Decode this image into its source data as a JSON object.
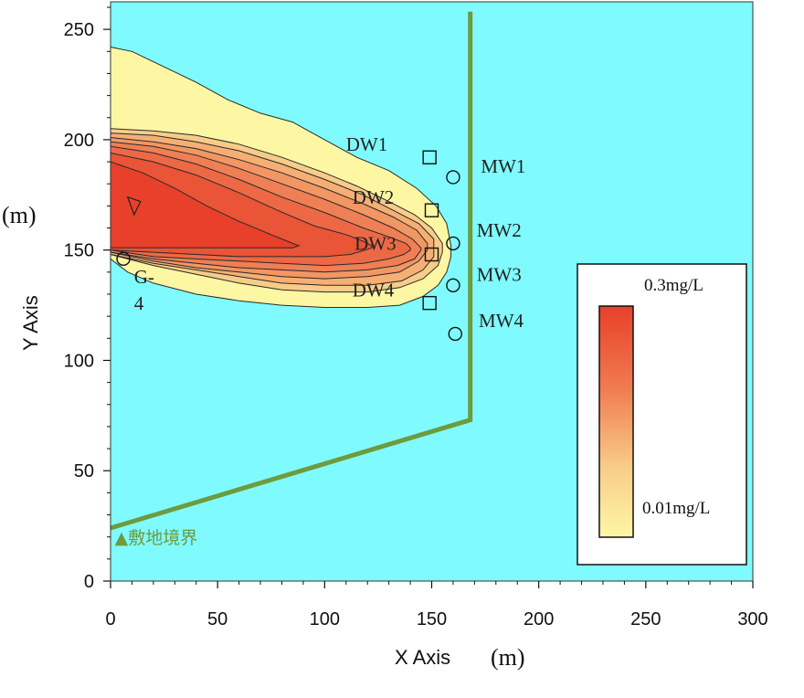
{
  "colors": {
    "background": "#7ffbff",
    "boundary": "#6f9a3e",
    "high": "#e8402a",
    "low": "#fdf7a4"
  },
  "chart_data": {
    "type": "contour",
    "xlabel": "X Axis",
    "ylabel": "Y Axis",
    "x_unit": "(m)",
    "y_unit": "(m)",
    "xlim": [
      0,
      300
    ],
    "ylim": [
      0,
      260
    ],
    "xticks": [
      0,
      50,
      100,
      150,
      200,
      250,
      300
    ],
    "yticks": [
      0,
      50,
      100,
      150,
      200,
      250
    ],
    "legend": {
      "placement": "bottom-right",
      "max_label": "0.3mg/L",
      "min_label": "0.01mg/L"
    },
    "levels": [
      {
        "upper": [
          [
            0,
            242
          ],
          [
            10,
            240
          ],
          [
            25,
            233
          ],
          [
            40,
            226
          ],
          [
            55,
            218
          ],
          [
            70,
            212
          ],
          [
            85,
            208
          ],
          [
            100,
            200
          ],
          [
            115,
            192
          ],
          [
            130,
            186
          ],
          [
            143,
            178
          ],
          [
            152,
            170
          ],
          [
            157,
            162
          ],
          [
            159,
            152
          ]
        ],
        "lower": [
          [
            0,
            146
          ],
          [
            8,
            140
          ],
          [
            20,
            135
          ],
          [
            40,
            130
          ],
          [
            60,
            127
          ],
          [
            80,
            125
          ],
          [
            100,
            124
          ],
          [
            120,
            124
          ],
          [
            135,
            125
          ],
          [
            146,
            129
          ],
          [
            153,
            134
          ],
          [
            157,
            140
          ],
          [
            159,
            147
          ]
        ]
      },
      {
        "upper": [
          [
            0,
            205
          ],
          [
            20,
            204
          ],
          [
            40,
            202
          ],
          [
            60,
            198
          ],
          [
            80,
            192
          ],
          [
            100,
            185
          ],
          [
            115,
            179
          ],
          [
            130,
            172
          ],
          [
            142,
            166
          ],
          [
            150,
            160
          ],
          [
            155,
            153
          ]
        ],
        "lower": [
          [
            0,
            148
          ],
          [
            20,
            143
          ],
          [
            40,
            139
          ],
          [
            60,
            135
          ],
          [
            80,
            132
          ],
          [
            100,
            131
          ],
          [
            120,
            131
          ],
          [
            135,
            133
          ],
          [
            146,
            137
          ],
          [
            153,
            143
          ],
          [
            155,
            149
          ]
        ]
      },
      {
        "upper": [
          [
            0,
            203
          ],
          [
            20,
            202
          ],
          [
            40,
            199
          ],
          [
            60,
            195
          ],
          [
            80,
            189
          ],
          [
            100,
            182
          ],
          [
            118,
            175
          ],
          [
            132,
            168
          ],
          [
            144,
            162
          ],
          [
            151,
            155
          ]
        ],
        "lower": [
          [
            0,
            148
          ],
          [
            20,
            144
          ],
          [
            40,
            141
          ],
          [
            60,
            138
          ],
          [
            80,
            135
          ],
          [
            100,
            134
          ],
          [
            120,
            134
          ],
          [
            136,
            136
          ],
          [
            146,
            141
          ],
          [
            151,
            147
          ]
        ]
      },
      {
        "upper": [
          [
            0,
            201
          ],
          [
            20,
            199
          ],
          [
            40,
            196
          ],
          [
            60,
            191
          ],
          [
            80,
            185
          ],
          [
            100,
            178
          ],
          [
            118,
            171
          ],
          [
            132,
            165
          ],
          [
            143,
            159
          ],
          [
            148,
            153
          ]
        ],
        "lower": [
          [
            0,
            149
          ],
          [
            20,
            145
          ],
          [
            40,
            142
          ],
          [
            60,
            140
          ],
          [
            80,
            138
          ],
          [
            100,
            137
          ],
          [
            120,
            138
          ],
          [
            135,
            140
          ],
          [
            144,
            145
          ],
          [
            148,
            150
          ]
        ]
      },
      {
        "upper": [
          [
            0,
            199
          ],
          [
            20,
            197
          ],
          [
            40,
            193
          ],
          [
            60,
            187
          ],
          [
            80,
            180
          ],
          [
            100,
            173
          ],
          [
            118,
            166
          ],
          [
            132,
            160
          ],
          [
            141,
            155
          ],
          [
            145,
            151
          ]
        ],
        "lower": [
          [
            0,
            149
          ],
          [
            20,
            146
          ],
          [
            40,
            144
          ],
          [
            60,
            142
          ],
          [
            80,
            141
          ],
          [
            100,
            140
          ],
          [
            120,
            141
          ],
          [
            134,
            143
          ],
          [
            142,
            146
          ],
          [
            145,
            150
          ]
        ]
      },
      {
        "upper": [
          [
            0,
            197
          ],
          [
            20,
            194
          ],
          [
            40,
            189
          ],
          [
            60,
            182
          ],
          [
            80,
            174
          ],
          [
            100,
            167
          ],
          [
            118,
            160
          ],
          [
            130,
            156
          ],
          [
            138,
            153
          ],
          [
            140,
            151
          ]
        ],
        "lower": [
          [
            0,
            150
          ],
          [
            20,
            147
          ],
          [
            40,
            146
          ],
          [
            60,
            145
          ],
          [
            80,
            144
          ],
          [
            100,
            143
          ],
          [
            118,
            144
          ],
          [
            130,
            146
          ],
          [
            137,
            148
          ],
          [
            140,
            150
          ]
        ]
      },
      {
        "upper": [
          [
            0,
            194
          ],
          [
            20,
            190
          ],
          [
            40,
            184
          ],
          [
            60,
            176
          ],
          [
            78,
            168
          ],
          [
            95,
            161
          ],
          [
            110,
            157
          ],
          [
            118,
            154
          ],
          [
            122,
            152
          ]
        ],
        "lower": [
          [
            0,
            150
          ],
          [
            20,
            149
          ],
          [
            40,
            148
          ],
          [
            60,
            147
          ],
          [
            80,
            147
          ],
          [
            100,
            147
          ],
          [
            112,
            148
          ],
          [
            119,
            150
          ],
          [
            122,
            151
          ]
        ]
      },
      {
        "upper": [
          [
            0,
            190
          ],
          [
            15,
            185
          ],
          [
            30,
            178
          ],
          [
            45,
            170
          ],
          [
            60,
            163
          ],
          [
            75,
            157
          ],
          [
            85,
            153
          ],
          [
            88,
            152
          ]
        ],
        "lower": [
          [
            0,
            151
          ],
          [
            20,
            151
          ],
          [
            40,
            151
          ],
          [
            60,
            151
          ],
          [
            75,
            151
          ],
          [
            85,
            151
          ],
          [
            88,
            152
          ]
        ]
      }
    ],
    "triangle_marker": [
      [
        8,
        174
      ],
      [
        14,
        172
      ],
      [
        11,
        166
      ]
    ],
    "boundary_line": [
      [
        0,
        24
      ],
      [
        168,
        73
      ],
      [
        168,
        258
      ]
    ],
    "boundary_label": "▲敷地境界",
    "boundary_label_pos": [
      2,
      17
    ],
    "wells": [
      {
        "id": "DW1",
        "shape": "square",
        "x": 149,
        "y": 192,
        "label": "DW1",
        "label_x": 110,
        "label_y": 195,
        "label_color": "#222"
      },
      {
        "id": "DW2",
        "shape": "square",
        "x": 150,
        "y": 168,
        "label": "DW2",
        "label_x": 113,
        "label_y": 171,
        "label_color": "#222"
      },
      {
        "id": "DW3",
        "shape": "square",
        "x": 150,
        "y": 148,
        "label": "DW3",
        "label_x": 114,
        "label_y": 150,
        "label_color": "#ffffff"
      },
      {
        "id": "DW4",
        "shape": "square",
        "x": 149,
        "y": 126,
        "label": "DW4",
        "label_x": 113,
        "label_y": 129,
        "label_color": "#222"
      },
      {
        "id": "MW1",
        "shape": "circle",
        "x": 160,
        "y": 183,
        "label": "MW1",
        "label_x": 173,
        "label_y": 185,
        "label_color": "#222"
      },
      {
        "id": "MW2",
        "shape": "circle",
        "x": 160,
        "y": 153,
        "label": "MW2",
        "label_x": 171,
        "label_y": 156,
        "label_color": "#222"
      },
      {
        "id": "MW3",
        "shape": "circle",
        "x": 160,
        "y": 134,
        "label": "MW3",
        "label_x": 171,
        "label_y": 136,
        "label_color": "#222"
      },
      {
        "id": "MW4",
        "shape": "circle",
        "x": 161,
        "y": 112,
        "label": "MW4",
        "label_x": 172,
        "label_y": 115,
        "label_color": "#222"
      },
      {
        "id": "G-4",
        "shape": "circle",
        "x": 6,
        "y": 146,
        "label": "G-",
        "label2": "4",
        "label_x": 11,
        "label_y": 135,
        "label2_x": 11,
        "label2_y": 123,
        "label_color": "#222"
      }
    ]
  }
}
